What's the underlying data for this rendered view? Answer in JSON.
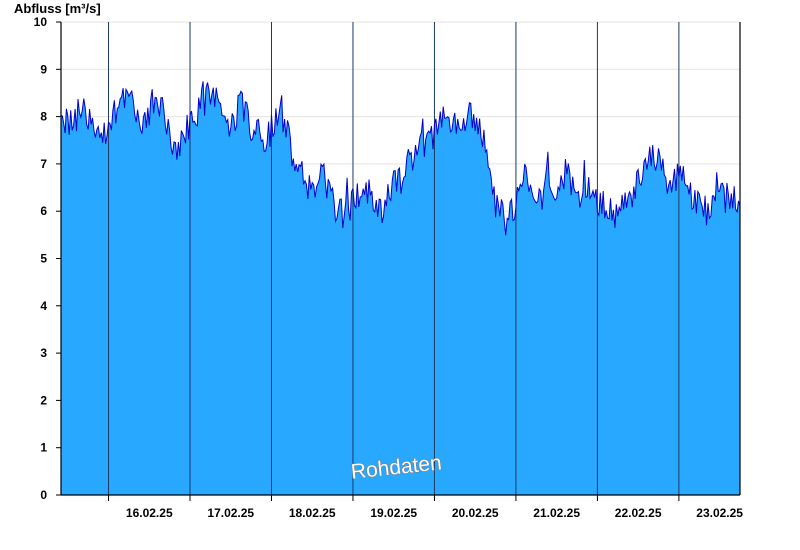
{
  "chart_data": {
    "type": "area",
    "ylabel": "Abfluss [m³/s]",
    "ylim": [
      0,
      10
    ],
    "yticks": [
      "0",
      "1",
      "2",
      "3",
      "4",
      "5",
      "6",
      "7",
      "8",
      "9",
      "10"
    ],
    "xlim": [
      "2025-02-15T10:00",
      "2025-02-23T18:00"
    ],
    "day_boundaries": [
      "2025-02-16T00:00",
      "2025-02-17T00:00",
      "2025-02-18T00:00",
      "2025-02-19T00:00",
      "2025-02-20T00:00",
      "2025-02-21T00:00",
      "2025-02-22T00:00",
      "2025-02-23T00:00"
    ],
    "xtick_labels": [
      {
        "date": "2025-02-16T12:00",
        "label": "16.02.25"
      },
      {
        "date": "2025-02-17T12:00",
        "label": "17.02.25"
      },
      {
        "date": "2025-02-18T12:00",
        "label": "18.02.25"
      },
      {
        "date": "2025-02-19T12:00",
        "label": "19.02.25"
      },
      {
        "date": "2025-02-20T12:00",
        "label": "20.02.25"
      },
      {
        "date": "2025-02-21T12:00",
        "label": "21.02.25"
      },
      {
        "date": "2025-02-22T12:00",
        "label": "22.02.25"
      },
      {
        "date": "2025-02-23T12:00",
        "label": "23.02.25"
      }
    ],
    "grid": "horizontal",
    "fill_color": "#29a8ff",
    "line_color": "#0000cc",
    "watermark": "Rohdaten",
    "series": [
      {
        "x": [
          "2025-02-15T10:00",
          "2025-02-15T12:00",
          "2025-02-15T15:00",
          "2025-02-15T18:00",
          "2025-02-15T21:00",
          "2025-02-16T00:00",
          "2025-02-16T03:00",
          "2025-02-16T06:00",
          "2025-02-16T09:00",
          "2025-02-16T12:00",
          "2025-02-16T15:00",
          "2025-02-16T18:00",
          "2025-02-16T21:00",
          "2025-02-17T00:00",
          "2025-02-17T03:00",
          "2025-02-17T06:00",
          "2025-02-17T09:00",
          "2025-02-17T12:00",
          "2025-02-17T15:00",
          "2025-02-17T18:00",
          "2025-02-17T21:00",
          "2025-02-18T00:00",
          "2025-02-18T03:00",
          "2025-02-18T06:00",
          "2025-02-18T09:00",
          "2025-02-18T12:00",
          "2025-02-18T15:00",
          "2025-02-18T18:00",
          "2025-02-18T21:00",
          "2025-02-19T00:00",
          "2025-02-19T03:00",
          "2025-02-19T06:00",
          "2025-02-19T09:00",
          "2025-02-19T12:00",
          "2025-02-19T15:00",
          "2025-02-19T18:00",
          "2025-02-19T21:00",
          "2025-02-20T00:00",
          "2025-02-20T03:00",
          "2025-02-20T06:00",
          "2025-02-20T09:00",
          "2025-02-20T12:00",
          "2025-02-20T15:00",
          "2025-02-20T18:00",
          "2025-02-20T21:00",
          "2025-02-21T00:00",
          "2025-02-21T03:00",
          "2025-02-21T06:00",
          "2025-02-21T09:00",
          "2025-02-21T12:00",
          "2025-02-21T15:00",
          "2025-02-21T18:00",
          "2025-02-21T21:00",
          "2025-02-22T00:00",
          "2025-02-22T03:00",
          "2025-02-22T06:00",
          "2025-02-22T09:00",
          "2025-02-22T12:00",
          "2025-02-22T15:00",
          "2025-02-22T18:00",
          "2025-02-22T21:00",
          "2025-02-23T00:00",
          "2025-02-23T03:00",
          "2025-02-23T06:00",
          "2025-02-23T09:00",
          "2025-02-23T12:00",
          "2025-02-23T15:00",
          "2025-02-23T18:00"
        ],
        "y": [
          8.1,
          7.8,
          8.3,
          8.0,
          7.6,
          7.7,
          8.2,
          8.4,
          7.9,
          8.1,
          8.3,
          7.7,
          7.4,
          7.8,
          8.3,
          8.6,
          8.1,
          7.9,
          8.2,
          7.8,
          7.5,
          7.7,
          8.1,
          7.3,
          6.9,
          6.4,
          6.8,
          6.2,
          5.9,
          6.2,
          6.6,
          6.3,
          6.0,
          6.5,
          6.8,
          7.2,
          7.7,
          7.6,
          7.9,
          7.8,
          8.0,
          7.9,
          7.2,
          6.2,
          5.7,
          6.1,
          6.7,
          6.2,
          6.9,
          6.5,
          6.9,
          6.1,
          6.6,
          6.2,
          6.0,
          5.9,
          6.1,
          6.6,
          7.0,
          7.3,
          6.4,
          6.9,
          6.3,
          6.1,
          6.0,
          6.2,
          6.4,
          6.1
        ]
      }
    ]
  }
}
